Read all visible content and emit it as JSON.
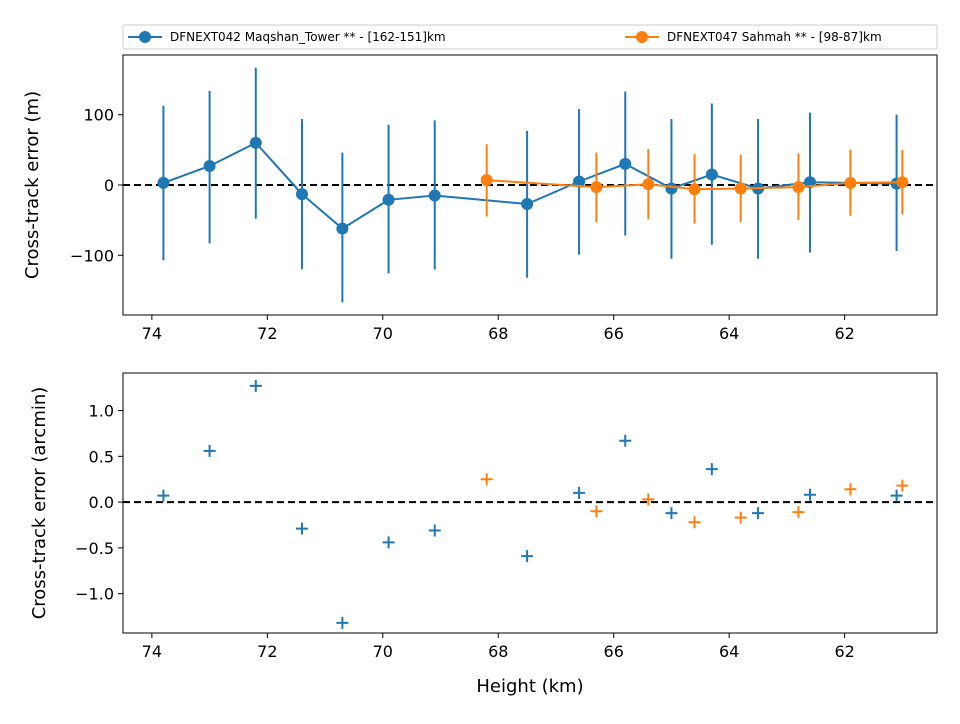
{
  "legend": {
    "entries": [
      {
        "label": "DFNEXT042 Maqshan_Tower **  - [162-151]km",
        "color": "#1f77b4"
      },
      {
        "label": "DFNEXT047 Sahmah **  - [98-87]km",
        "color": "#ff7f0e"
      }
    ]
  },
  "chart_data": [
    {
      "type": "line",
      "title": "",
      "xlabel": "",
      "ylabel": "Cross-track error (m)",
      "xlim": [
        74.5,
        60.4
      ],
      "ylim": [
        -185,
        185
      ],
      "x_inverted": true,
      "x_ticks": [
        74,
        72,
        70,
        68,
        66,
        64,
        62
      ],
      "y_ticks": [
        100,
        0,
        -100
      ],
      "y_tick_labels": [
        "100",
        "0",
        "−100"
      ],
      "reference_line": {
        "y": 0,
        "style": "dashed",
        "color": "#000000"
      },
      "series": [
        {
          "name": "DFNEXT042 Maqshan_Tower **  - [162-151]km",
          "color": "#1f77b4",
          "x": [
            73.8,
            73.0,
            72.2,
            71.4,
            70.7,
            69.9,
            69.1,
            67.5,
            66.6,
            65.8,
            65.0,
            64.3,
            63.5,
            62.6,
            61.1
          ],
          "y": [
            3,
            27,
            60,
            -13,
            -62,
            -21,
            -15,
            -27,
            5,
            30,
            -5,
            15,
            -5,
            4,
            2
          ],
          "err_low": [
            -107,
            -83,
            -48,
            -120,
            -167,
            -126,
            -120,
            -132,
            -99,
            -72,
            -105,
            -85,
            -105,
            -96,
            -94
          ],
          "err_high": [
            113,
            134,
            167,
            94,
            46,
            86,
            92,
            77,
            108,
            133,
            94,
            116,
            94,
            103,
            100
          ]
        },
        {
          "name": "DFNEXT047 Sahmah **  - [98-87]km",
          "color": "#ff7f0e",
          "x": [
            68.2,
            66.3,
            65.4,
            64.6,
            63.8,
            62.8,
            61.9,
            61.0
          ],
          "y": [
            7,
            -3,
            1,
            -6,
            -5,
            -3,
            3,
            4
          ],
          "err_low": [
            -45,
            -53,
            -49,
            -55,
            -53,
            -50,
            -44,
            -42
          ],
          "err_high": [
            58,
            46,
            51,
            44,
            43,
            45,
            50,
            50
          ]
        }
      ]
    },
    {
      "type": "scatter",
      "title": "",
      "xlabel": "Height (km)",
      "ylabel": "Cross-track error (arcmin)",
      "xlim": [
        74.5,
        60.4
      ],
      "ylim": [
        -1.43,
        1.41
      ],
      "x_inverted": true,
      "x_ticks": [
        74,
        72,
        70,
        68,
        66,
        64,
        62
      ],
      "y_ticks": [
        1.0,
        0.5,
        0.0,
        -0.5,
        -1.0
      ],
      "y_tick_labels": [
        "1.0",
        "0.5",
        "0.0",
        "−0.5",
        "−1.0"
      ],
      "marker": "+",
      "reference_line": {
        "y": 0,
        "style": "dashed",
        "color": "#000000"
      },
      "series": [
        {
          "name": "DFNEXT042 Maqshan_Tower **  - [162-151]km",
          "color": "#1f77b4",
          "x": [
            73.8,
            73.0,
            72.2,
            71.4,
            70.7,
            69.9,
            69.1,
            67.5,
            66.6,
            65.8,
            65.0,
            64.3,
            63.5,
            62.6,
            61.1
          ],
          "y": [
            0.07,
            0.56,
            1.27,
            -0.29,
            -1.32,
            -0.44,
            -0.31,
            -0.59,
            0.1,
            0.67,
            -0.12,
            0.36,
            -0.12,
            0.08,
            0.07
          ]
        },
        {
          "name": "DFNEXT047 Sahmah **  - [98-87]km",
          "color": "#ff7f0e",
          "x": [
            68.2,
            66.3,
            65.4,
            64.6,
            63.8,
            62.8,
            61.9,
            61.0
          ],
          "y": [
            0.25,
            -0.1,
            0.03,
            -0.22,
            -0.17,
            -0.11,
            0.14,
            0.18
          ]
        }
      ]
    }
  ]
}
